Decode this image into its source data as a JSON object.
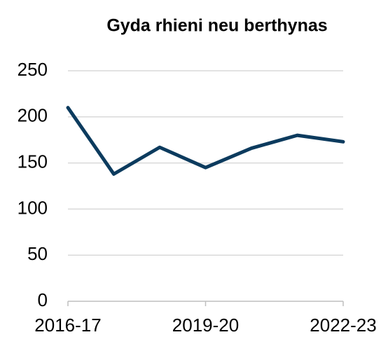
{
  "chart_data": {
    "type": "line",
    "title": "Gyda rhieni neu berthynas",
    "categories": [
      "2016-17",
      null,
      null,
      "2019-20",
      null,
      null,
      "2022-23"
    ],
    "series": [
      {
        "name": "Gyda rhieni neu berthynas",
        "color": "#0c3b5e",
        "values": [
          210,
          138,
          167,
          145,
          166,
          180,
          173
        ]
      }
    ],
    "ylim": [
      0,
      250
    ],
    "yticks": [
      0,
      50,
      100,
      150,
      200,
      250
    ],
    "grid": true
  }
}
